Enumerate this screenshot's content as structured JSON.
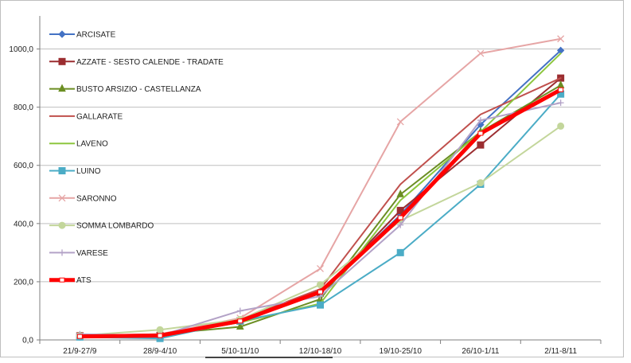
{
  "chart_data": {
    "type": "line",
    "categories": [
      "21/9-27/9",
      "28/9-4/10",
      "5/10-11/10",
      "12/10-18/10",
      "19/10-25/10",
      "26/10-1/11",
      "2/11-8/11"
    ],
    "ylim": [
      0,
      1100
    ],
    "yticks": [
      0,
      200,
      400,
      600,
      800,
      1000
    ],
    "ytick_labels": [
      "0,0",
      "200,0",
      "400,0",
      "600,0",
      "800,0",
      "1000,0"
    ],
    "grid": "horizontal",
    "legend_position": "left",
    "series": [
      {
        "name": "ARCISATE",
        "color": "#4472C4",
        "marker": "diamond",
        "values": [
          10,
          15,
          65,
          165,
          430,
          740,
          995
        ]
      },
      {
        "name": "AZZATE - SESTO CALENDE - TRADATE",
        "color": "#9B2D30",
        "marker": "square",
        "values": [
          15,
          15,
          65,
          160,
          445,
          670,
          900
        ]
      },
      {
        "name": "BUSTO ARSIZIO - CASTELLANZA",
        "color": "#6B8E23",
        "marker": "triangle",
        "values": [
          12,
          20,
          45,
          140,
          500,
          715,
          875
        ]
      },
      {
        "name": "GALLARATE",
        "color": "#C0504D",
        "marker": "none",
        "values": [
          15,
          20,
          70,
          175,
          535,
          775,
          900
        ]
      },
      {
        "name": "LAVENO",
        "color": "#8DC63F",
        "marker": "none",
        "values": [
          10,
          15,
          60,
          125,
          480,
          715,
          985
        ]
      },
      {
        "name": "LUINO",
        "color": "#4BACC6",
        "marker": "square",
        "values": [
          10,
          5,
          65,
          120,
          300,
          535,
          845
        ]
      },
      {
        "name": "SARONNO",
        "color": "#E6A5A5",
        "marker": "x",
        "values": [
          15,
          20,
          75,
          245,
          750,
          985,
          1035
        ]
      },
      {
        "name": "SOMMA LOMBARDO",
        "color": "#C3D69B",
        "marker": "circle",
        "values": [
          15,
          35,
          70,
          190,
          410,
          540,
          735
        ]
      },
      {
        "name": "VARESE",
        "color": "#B3A2C7",
        "marker": "plus",
        "values": [
          20,
          15,
          100,
          150,
          395,
          755,
          815
        ]
      },
      {
        "name": "ATS",
        "color": "#FF0000",
        "marker": "square-small",
        "thick": true,
        "values": [
          12,
          15,
          65,
          165,
          420,
          710,
          860
        ]
      }
    ]
  }
}
